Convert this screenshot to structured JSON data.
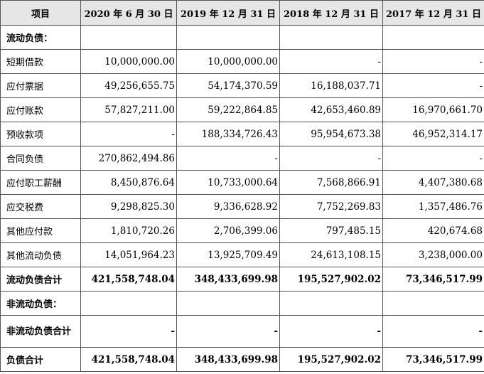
{
  "table": {
    "headers": [
      "项目",
      "2020 年 6 月 30 日",
      "2019 年 12 月 31 日",
      "2018 年 12 月 31 日",
      "2017 年 12 月 31 日"
    ],
    "rows": [
      {
        "label": "流动负债：",
        "values": [
          "",
          "",
          "",
          ""
        ],
        "style": "section"
      },
      {
        "label": "短期借款",
        "values": [
          "10,000,000.00",
          "10,000,000.00",
          "-",
          "-"
        ],
        "style": "normal"
      },
      {
        "label": "应付票据",
        "values": [
          "49,256,655.75",
          "54,174,370.59",
          "16,188,037.71",
          "-"
        ],
        "style": "normal"
      },
      {
        "label": "应付账款",
        "values": [
          "57,827,211.00",
          "59,222,864.85",
          "42,653,460.89",
          "16,970,661.70"
        ],
        "style": "normal"
      },
      {
        "label": "预收款项",
        "values": [
          "-",
          "188,334,726.43",
          "95,954,673.38",
          "46,952,314.17"
        ],
        "style": "normal"
      },
      {
        "label": "合同负债",
        "values": [
          "270,862,494.86",
          "-",
          "-",
          "-"
        ],
        "style": "normal"
      },
      {
        "label": "应付职工薪酬",
        "values": [
          "8,450,876.64",
          "10,733,000.64",
          "7,568,866.91",
          "4,407,380.68"
        ],
        "style": "normal"
      },
      {
        "label": "应交税费",
        "values": [
          "9,298,825.30",
          "9,336,628.92",
          "7,752,269.83",
          "1,357,486.76"
        ],
        "style": "normal"
      },
      {
        "label": "其他应付款",
        "values": [
          "1,810,720.26",
          "2,706,399.06",
          "797,485.15",
          "420,674.68"
        ],
        "style": "normal"
      },
      {
        "label": "其他流动负债",
        "values": [
          "14,051,964.23",
          "13,925,709.49",
          "24,613,108.15",
          "3,238,000.00"
        ],
        "style": "normal"
      },
      {
        "label": "流动负债合计",
        "values": [
          "421,558,748.04",
          "348,433,699.98",
          "195,527,902.02",
          "73,346,517.99"
        ],
        "style": "bold"
      },
      {
        "label": "非流动负债：",
        "values": [
          "",
          "",
          "",
          ""
        ],
        "style": "section"
      },
      {
        "label": "非流动负债合计",
        "values": [
          "-",
          "-",
          "-",
          "-"
        ],
        "style": "tall"
      },
      {
        "label": "负债合计",
        "values": [
          "421,558,748.04",
          "348,433,699.98",
          "195,527,902.02",
          "73,346,517.99"
        ],
        "style": "bold"
      }
    ]
  }
}
